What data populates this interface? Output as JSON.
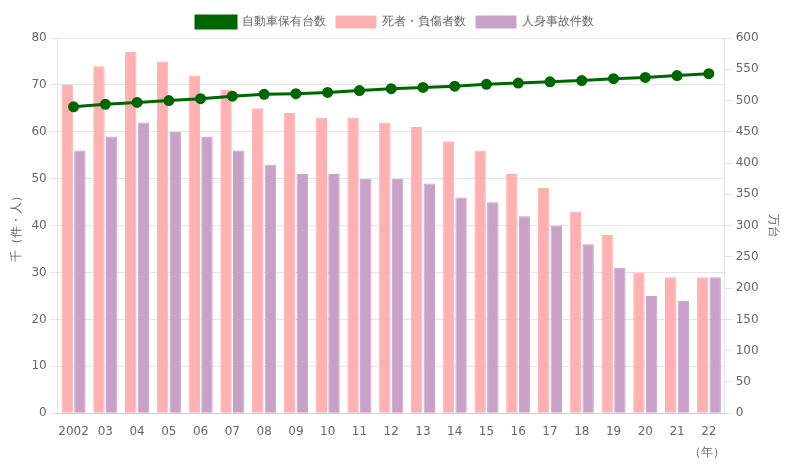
{
  "chart_data": {
    "type": "bar",
    "categories": [
      "2002",
      "03",
      "04",
      "05",
      "06",
      "07",
      "08",
      "09",
      "10",
      "11",
      "12",
      "13",
      "14",
      "15",
      "16",
      "17",
      "18",
      "19",
      "20",
      "21",
      "22"
    ],
    "series": [
      {
        "name": "死者・負傷者数",
        "color": "#FFB0B0",
        "values": [
          70,
          74,
          77,
          75,
          72,
          69,
          65,
          64,
          63,
          63,
          62,
          61,
          58,
          56,
          51,
          48,
          43,
          38,
          30,
          29,
          29
        ]
      },
      {
        "name": "人身事故件数",
        "color": "#C8A0C8",
        "values": [
          56,
          59,
          62,
          60,
          59,
          56,
          53,
          51,
          51,
          50,
          50,
          49,
          46,
          45,
          42,
          40,
          36,
          31,
          25,
          24,
          29
        ]
      },
      {
        "name": "自動車保有台数",
        "type": "line",
        "axis": "y2",
        "color": "#006600",
        "marker": "circle",
        "values": [
          490,
          494,
          497,
          500,
          503,
          507,
          510,
          511,
          513,
          516,
          519,
          521,
          523,
          526,
          528,
          530,
          532,
          535,
          537,
          540,
          543
        ]
      }
    ],
    "ylabel": "千（件・人）",
    "y2label": "万台",
    "xlabel": "（年）",
    "ylim": [
      0,
      80
    ],
    "yticks": [
      0,
      10,
      20,
      30,
      40,
      50,
      60,
      70,
      80
    ],
    "y2lim": [
      0,
      600
    ],
    "y2ticks": [
      0,
      50,
      100,
      150,
      200,
      250,
      300,
      350,
      400,
      450,
      500,
      550,
      600
    ],
    "grid": true,
    "legend": "top"
  }
}
